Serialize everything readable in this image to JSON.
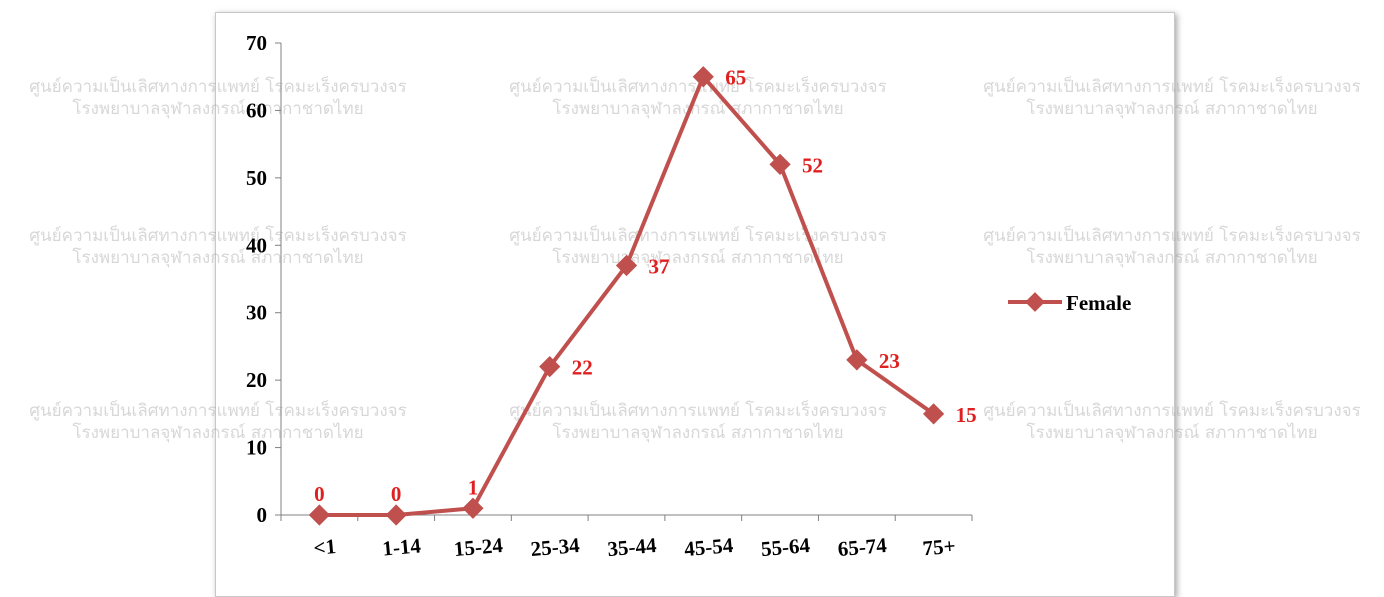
{
  "watermark": {
    "line1": "ศูนย์ความเป็นเลิศทางการแพทย์ โรคมะเร็งครบวงจร",
    "line2": "โรงพยาบาลจุฬาลงกรณ์ สภากาชาดไทย"
  },
  "colors": {
    "series": "#c0504d",
    "data_label": "#e02020",
    "axis": "#808080"
  },
  "chart_data": {
    "type": "line",
    "categories": [
      "<1",
      "1-14",
      "15-24",
      "25-34",
      "35-44",
      "45-54",
      "55-64",
      "65-74",
      "75+"
    ],
    "series": [
      {
        "name": "Female",
        "values": [
          0,
          0,
          1,
          22,
          37,
          65,
          52,
          23,
          15
        ],
        "marker": "diamond"
      }
    ],
    "ylim": [
      0,
      70
    ],
    "yticks": [
      0,
      10,
      20,
      30,
      40,
      50,
      60,
      70
    ],
    "data_labels": [
      "0",
      "0",
      "1",
      "22",
      "37",
      "65",
      "52",
      "23",
      "15"
    ],
    "title": "",
    "xlabel": "",
    "ylabel": "",
    "grid": false,
    "legend": "right"
  }
}
